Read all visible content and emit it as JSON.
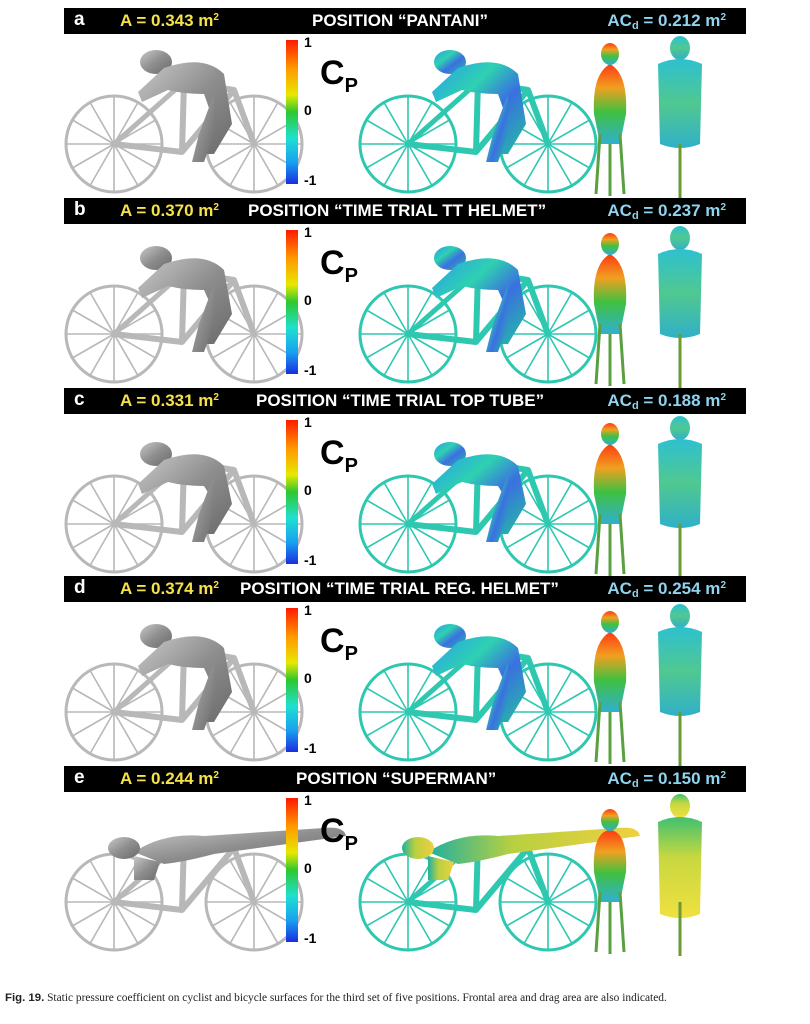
{
  "panels": [
    {
      "letter": "a",
      "area_label": "A = 0.343 m",
      "area_sup": "2",
      "position": "POSITION “PANTANI”",
      "acd_main": "AC",
      "acd_sub": "d",
      "acd_value": " = 0.212 m",
      "acd_sup": "2",
      "style": "upright"
    },
    {
      "letter": "b",
      "area_label": "A = 0.370 m",
      "area_sup": "2",
      "position": "POSITION “TIME TRIAL TT HELMET”",
      "acd_main": "AC",
      "acd_sub": "d",
      "acd_value": " = 0.237 m",
      "acd_sup": "2",
      "style": "tt"
    },
    {
      "letter": "c",
      "area_label": "A = 0.331 m",
      "area_sup": "2",
      "position": "POSITION “TIME TRIAL TOP TUBE”",
      "acd_main": "AC",
      "acd_sub": "d",
      "acd_value": " = 0.188 m",
      "acd_sup": "2",
      "style": "toptube"
    },
    {
      "letter": "d",
      "area_label": "A = 0.374 m",
      "area_sup": "2",
      "position": "POSITION “TIME TRIAL REG. HELMET”",
      "acd_main": "AC",
      "acd_sub": "d",
      "acd_value": " = 0.254 m",
      "acd_sup": "2",
      "style": "tt"
    },
    {
      "letter": "e",
      "area_label": "A = 0.244 m",
      "area_sup": "2",
      "position": "POSITION “SUPERMAN”",
      "acd_main": "AC",
      "acd_sub": "d",
      "acd_value": " = 0.150 m",
      "acd_sup": "2",
      "style": "superman"
    }
  ],
  "colorbar": {
    "title_main": "C",
    "title_sub": "P",
    "ticks": [
      "1",
      "0",
      "-1"
    ]
  },
  "caption": {
    "label": "Fig. 19.",
    "text": " Static pressure coefficient on cyclist and bicycle surfaces for the third set of five positions. Frontal area and drag area are also indicated."
  },
  "colors": {
    "bar_bg": "#000000",
    "area_text": "#f5e14a",
    "acd_text": "#8fd3ee",
    "gray_model": "#9a9a9a"
  }
}
